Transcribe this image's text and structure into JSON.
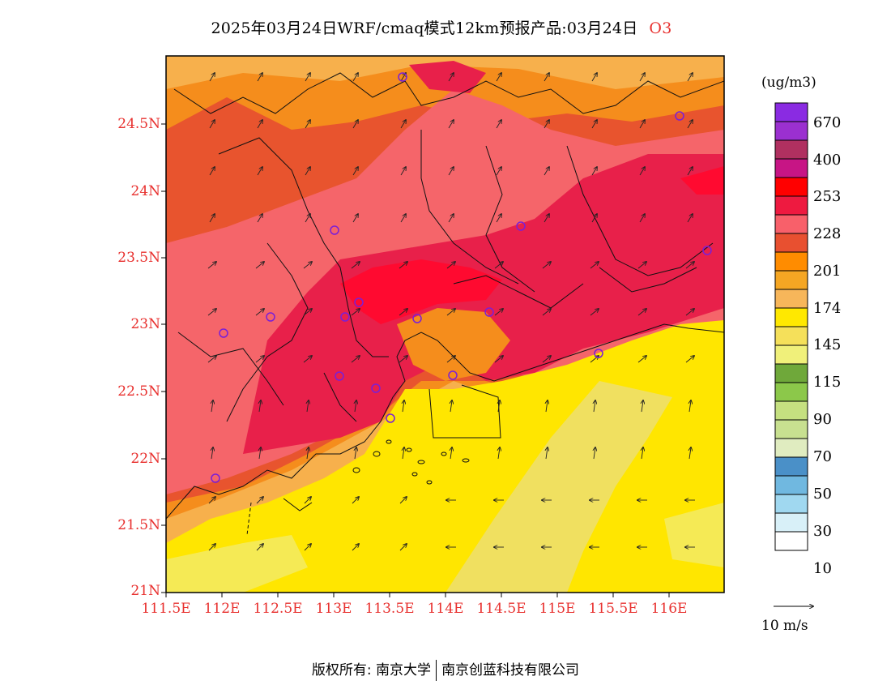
{
  "title": {
    "text": "2025年03月24日WRF/cmaq模式12km预报产品:03月24日",
    "species": "O3"
  },
  "axes": {
    "lat_labels": [
      "24.5N",
      "24N",
      "23.5N",
      "23N",
      "22.5N",
      "22N",
      "21.5N",
      "21N"
    ],
    "lon_labels": [
      "111.5E",
      "112E",
      "112.5E",
      "113E",
      "113.5E",
      "114E",
      "114.5E",
      "115E",
      "115.5E",
      "116E"
    ]
  },
  "colorbar": {
    "unit": "(ug/m3)",
    "colors": [
      "#8a2be2",
      "#9b30d0",
      "#b03060",
      "#c71585",
      "#ff0000",
      "#ee1a40",
      "#f8606a",
      "#e85030",
      "#ff8c00",
      "#f5a623",
      "#f7b65a",
      "#ffe800",
      "#f5e05a",
      "#f0f07a",
      "#6fa83a",
      "#8cc84a",
      "#c5e080",
      "#c8e090",
      "#e0ecc0",
      "#4a90c8",
      "#70b8e0",
      "#a0d8f0",
      "#d8f0f8",
      "#ffffff"
    ],
    "labels": [
      "670",
      "400",
      "253",
      "228",
      "201",
      "174",
      "145",
      "115",
      "90",
      "70",
      "50",
      "30",
      "10"
    ]
  },
  "wind_vector": {
    "label": "10 m/s"
  },
  "footer": {
    "copyright": "版权所有: 南京大学",
    "company": "南京创蓝科技有限公司"
  }
}
